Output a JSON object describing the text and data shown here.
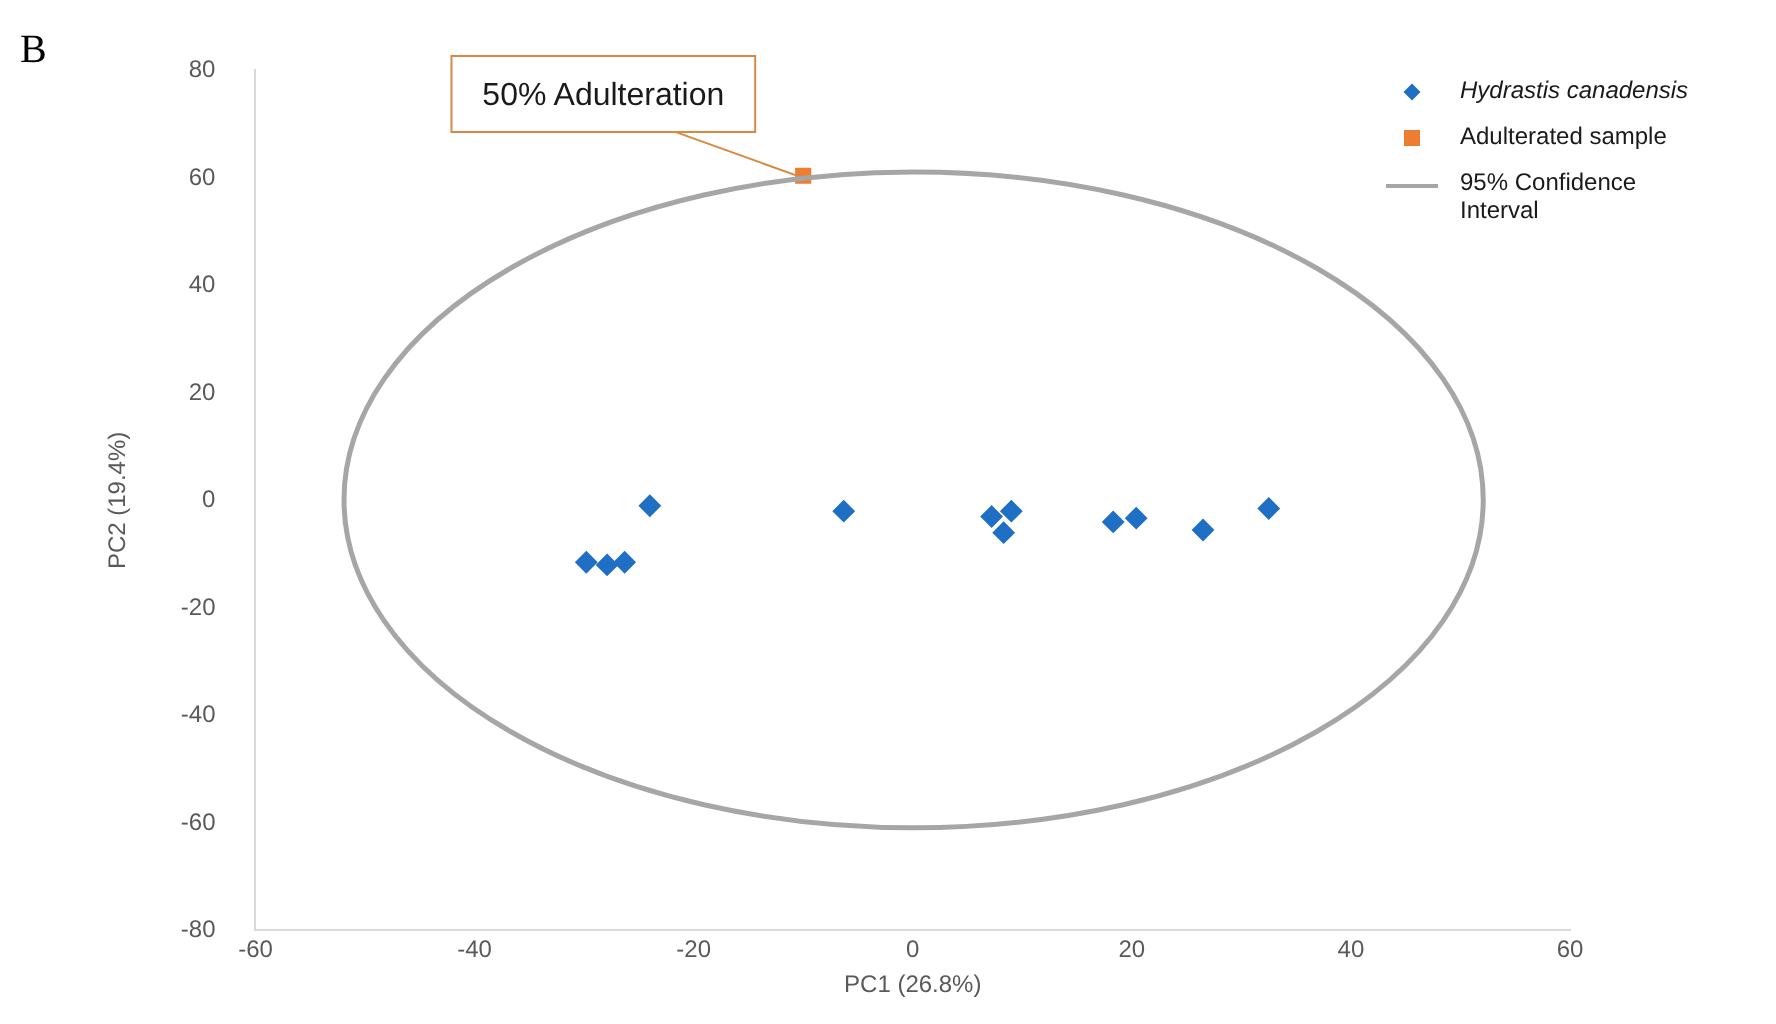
{
  "chart_data": {
    "type": "scatter",
    "title": "B",
    "xlabel": "PC1 (26.8%)",
    "ylabel": "PC2 (19.4%)",
    "xlim": [
      -60,
      60
    ],
    "xticks": [
      -60,
      -40,
      -20,
      0,
      20,
      40,
      60
    ],
    "ylim": [
      -80,
      80
    ],
    "yticks": [
      -80,
      -60,
      -40,
      -20,
      0,
      20,
      40,
      60,
      80
    ],
    "grid": false,
    "legend": "top right",
    "annotations": [
      {
        "text": "50% Adulteration",
        "x": -10,
        "y": 60
      },
      "95% Confidence Interval"
    ],
    "series": [
      {
        "name": "Hydrastis canadensis",
        "color": "#1f6fc5",
        "marker": "diamond",
        "x": [
          -29.8,
          -27.9,
          -26.3,
          -24,
          -6.3,
          7.2,
          8.3,
          9,
          18.3,
          20.4,
          26.5,
          32.5
        ],
        "values": [
          -11.5,
          -12,
          -11.5,
          -1,
          -2,
          -3,
          -6,
          -2,
          -4,
          -3.3,
          -5.5,
          -1.5
        ]
      },
      {
        "name": "Adulterated sample",
        "color": "#ed7d31",
        "marker": "square",
        "x": [
          -10
        ],
        "values": [
          60.4
        ]
      }
    ]
  }
}
